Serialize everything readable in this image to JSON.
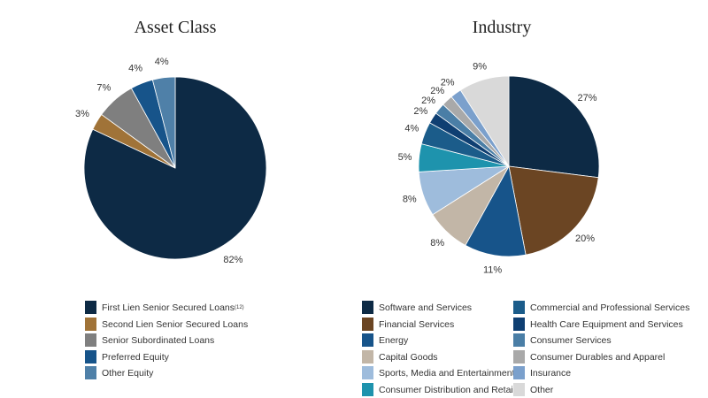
{
  "chart_data": [
    {
      "type": "pie",
      "title": "Asset Class",
      "slices": [
        {
          "label": "First Lien Senior Secured Loans",
          "label_sup": "(12)",
          "value": 82,
          "color": "#0d2a45"
        },
        {
          "label": "Second Lien Senior Secured Loans",
          "value": 3,
          "color": "#a07338"
        },
        {
          "label": "Senior Subordinated Loans",
          "value": 7,
          "color": "#7f7f7f"
        },
        {
          "label": "Preferred Equity",
          "value": 4,
          "color": "#17548a"
        },
        {
          "label": "Other Equity",
          "value": 4,
          "color": "#4f80a8"
        }
      ],
      "legend": "bottom"
    },
    {
      "type": "pie",
      "title": "Industry",
      "slices": [
        {
          "label": "Software and Services",
          "value": 27,
          "color": "#0d2a45"
        },
        {
          "label": "Financial Services",
          "value": 20,
          "color": "#6b4523"
        },
        {
          "label": "Energy",
          "value": 11,
          "color": "#17548a"
        },
        {
          "label": "Capital Goods",
          "value": 8,
          "color": "#c2b6a7"
        },
        {
          "label": "Sports, Media and Entertainment",
          "value": 8,
          "color": "#9ebcdc"
        },
        {
          "label": "Consumer Distribution and Retail",
          "value": 5,
          "color": "#1e93ad"
        },
        {
          "label": "Commercial and Professional Services",
          "value": 4,
          "color": "#1b5c8a"
        },
        {
          "label": "Health Care Equipment and Services",
          "value": 2,
          "color": "#0f3f72"
        },
        {
          "label": "Consumer Services",
          "value": 2,
          "color": "#4a7ea6"
        },
        {
          "label": "Consumer Durables and Apparel",
          "value": 2,
          "color": "#a9a9a9"
        },
        {
          "label": "Insurance",
          "value": 2,
          "color": "#7ba0cc"
        },
        {
          "label": "Other",
          "value": 9,
          "color": "#d9d9d9"
        }
      ],
      "legend": "bottom"
    }
  ]
}
